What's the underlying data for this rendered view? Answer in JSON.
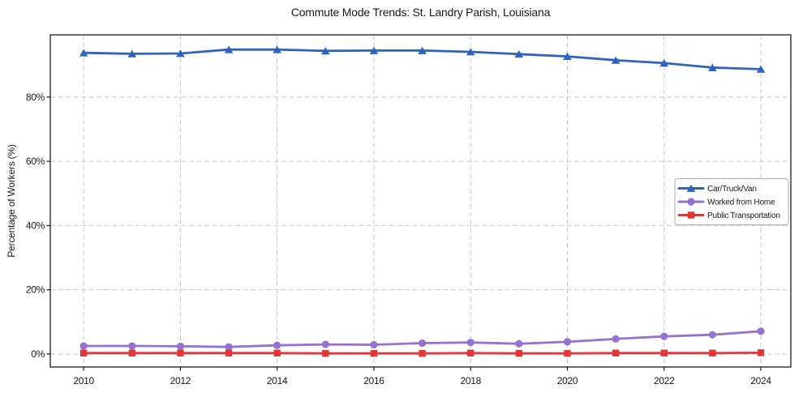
{
  "chart_data": {
    "type": "line",
    "title": "Commute Mode Trends: St. Landry Parish, Louisiana",
    "xlabel": "",
    "ylabel": "Percentage of Workers (%)",
    "x": [
      2010,
      2011,
      2012,
      2013,
      2014,
      2015,
      2016,
      2017,
      2018,
      2019,
      2020,
      2021,
      2022,
      2023,
      2024
    ],
    "x_tick_values": [
      2010,
      2012,
      2014,
      2016,
      2018,
      2020,
      2022,
      2024
    ],
    "x_tick_labels": [
      "2010",
      "2012",
      "2014",
      "2016",
      "2018",
      "2020",
      "2022",
      "2024"
    ],
    "y_tick_values": [
      0,
      20,
      40,
      60,
      80
    ],
    "y_tick_labels": [
      "0%",
      "20%",
      "40%",
      "60%",
      "80%"
    ],
    "xlim": [
      2009.31,
      2024.62
    ],
    "ylim": [
      -4.05,
      99.4
    ],
    "grid": true,
    "grid_style": "dashed",
    "legend_position": "center-right",
    "colors": {
      "axis_text": "#1a1a1a",
      "spine": "#1a1a1a",
      "grid": "#c9c9c9",
      "legend_border": "#b0b0b0",
      "legend_fill": "rgba(255,255,255,0.85)"
    },
    "series": [
      {
        "name": "Car/Truck/Van",
        "slug": "car-truck-van",
        "color": "#2d64c2",
        "marker": "triangle-up",
        "values": [
          93.8,
          93.5,
          93.6,
          94.8,
          94.8,
          94.4,
          94.5,
          94.5,
          94.1,
          93.4,
          92.7,
          91.5,
          90.6,
          89.2,
          88.7
        ]
      },
      {
        "name": "Worked from Home",
        "slug": "worked-from-home",
        "color": "#9671d2",
        "marker": "circle",
        "values": [
          2.5,
          2.5,
          2.4,
          2.2,
          2.7,
          3.0,
          2.9,
          3.4,
          3.6,
          3.2,
          3.8,
          4.7,
          5.5,
          6.0,
          7.1
        ]
      },
      {
        "name": "Public Transportation",
        "slug": "public-transportation",
        "color": "#e13737",
        "marker": "square",
        "values": [
          0.3,
          0.3,
          0.3,
          0.3,
          0.3,
          0.2,
          0.2,
          0.2,
          0.3,
          0.2,
          0.2,
          0.3,
          0.3,
          0.3,
          0.4
        ]
      }
    ]
  }
}
